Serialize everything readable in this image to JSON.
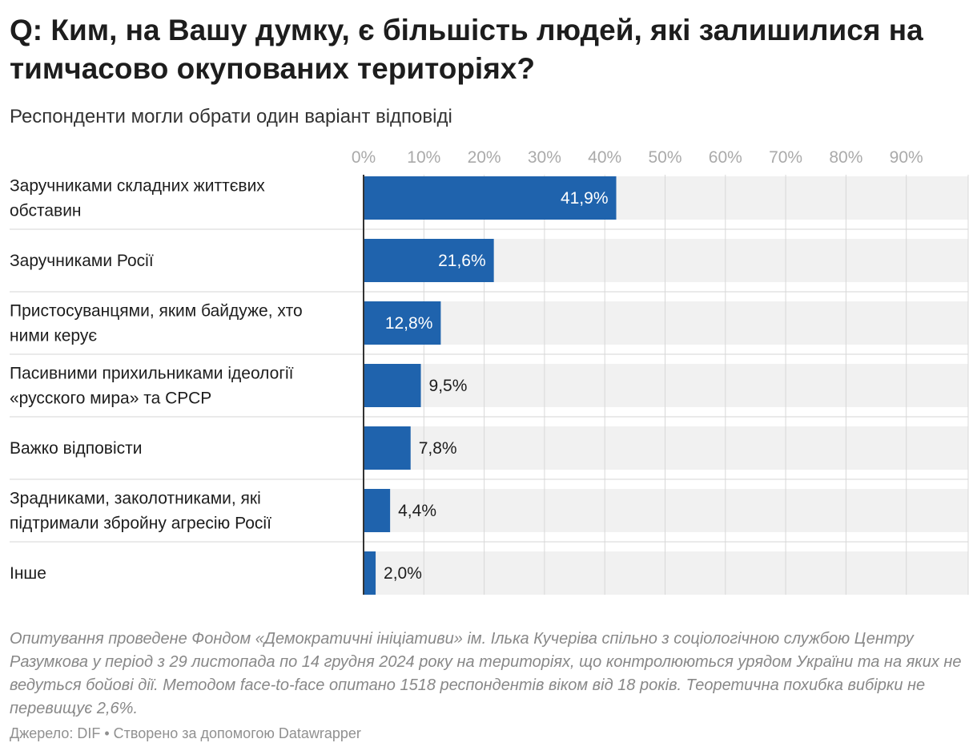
{
  "header": {
    "title": "Q: Ким, на Вашу думку, є більшість людей, які залишилися на тимчасово окупованих територіях?",
    "subtitle": "Респонденти могли обрати один варіант відповіді"
  },
  "footer": {
    "notes": "Опитування проведене Фондом «Демократичні ініціативи» ім. Ілька Кучеріва спільно з соціологічною службою Центру Разумкова у період з 29 листопада по 14 грудня 2024 року на територіях, що контролюються урядом України та на яких не ведуться бойові дії. Методом face-to-face опитано 1518 респондентів віком від 18 років. Теоретична похибка вибірки не перевищує 2,6%.",
    "source": "Джерело: DIF • Створено за допомогою Datawrapper"
  },
  "colors": {
    "bar": "#1f63ad",
    "track": "#f1f1f1",
    "grid": "#d8d8d8",
    "tick_text": "#aaaaaa",
    "label_text": "#1d1d1d",
    "value_inside": "#ffffff",
    "value_outside": "#1d1d1d",
    "axis": "#333333"
  },
  "chart_data": {
    "type": "bar",
    "orientation": "horizontal",
    "xlim": [
      0,
      100
    ],
    "ticks": [
      0,
      10,
      20,
      30,
      40,
      50,
      60,
      70,
      80,
      90
    ],
    "tick_labels": [
      "0%",
      "10%",
      "20%",
      "30%",
      "40%",
      "50%",
      "60%",
      "70%",
      "80%",
      "90%"
    ],
    "grid": true,
    "categories": [
      [
        "Заручниками складних життєвих",
        "обставин"
      ],
      [
        "Заручниками Росії"
      ],
      [
        "Пристосуванцями, яким байдуже, хто",
        "ними керує"
      ],
      [
        "Пасивними прихильниками ідеології",
        "«русского мира» та СРСР"
      ],
      [
        "Важко відповісти"
      ],
      [
        "Зрадниками, заколотниками, які",
        "підтримали збройну агресію Росії"
      ],
      [
        "Інше"
      ]
    ],
    "values": [
      41.9,
      21.6,
      12.8,
      9.5,
      7.8,
      4.4,
      2.0
    ],
    "value_labels": [
      "41,9%",
      "21,6%",
      "12,8%",
      "9,5%",
      "7,8%",
      "4,4%",
      "2,0%"
    ]
  }
}
